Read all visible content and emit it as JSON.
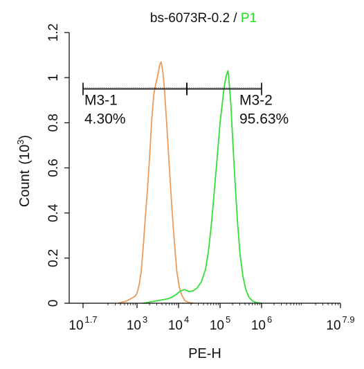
{
  "chart_data": {
    "type": "line",
    "title": {
      "prefix": "bs-6073R-0.2 / ",
      "highlight": "P1",
      "highlight_color": "#22dd22"
    },
    "xlabel": "PE-H",
    "ylabel": "Count",
    "ylabel_unit": "(10",
    "ylabel_unit_exp": "3",
    "ylabel_unit_close": ")",
    "x_scale": "log10",
    "xlim_log10": [
      1.7,
      7.9
    ],
    "ylim": [
      0,
      1.2
    ],
    "y_ticks": [
      {
        "value": 0,
        "label": "0"
      },
      {
        "value": 0.2,
        "label": "0.2"
      },
      {
        "value": 0.4,
        "label": "0.4"
      },
      {
        "value": 0.6,
        "label": "0.6"
      },
      {
        "value": 0.8,
        "label": "0.8"
      },
      {
        "value": 1,
        "label": "1"
      },
      {
        "value": 1.2,
        "label": "1.2"
      }
    ],
    "x_ticks": [
      {
        "value": 1.7,
        "base": "10",
        "exp": "1.7"
      },
      {
        "value": 3,
        "base": "10",
        "exp": "3"
      },
      {
        "value": 4,
        "base": "10",
        "exp": "4"
      },
      {
        "value": 5,
        "base": "10",
        "exp": "5"
      },
      {
        "value": 6,
        "base": "10",
        "exp": "6"
      },
      {
        "value": 7.9,
        "base": "10",
        "exp": "7.9"
      }
    ],
    "series": [
      {
        "color": "#ee9955",
        "points_log10_x": [
          [
            2.55,
            0.0
          ],
          [
            2.65,
            0.005
          ],
          [
            2.75,
            0.01
          ],
          [
            2.85,
            0.02
          ],
          [
            2.95,
            0.03
          ],
          [
            3.0,
            0.045
          ],
          [
            3.05,
            0.08
          ],
          [
            3.1,
            0.14
          ],
          [
            3.15,
            0.25
          ],
          [
            3.2,
            0.38
          ],
          [
            3.25,
            0.5
          ],
          [
            3.3,
            0.64
          ],
          [
            3.35,
            0.8
          ],
          [
            3.4,
            0.92
          ],
          [
            3.45,
            0.97
          ],
          [
            3.5,
            1.01
          ],
          [
            3.55,
            1.06
          ],
          [
            3.58,
            1.07
          ],
          [
            3.62,
            1.03
          ],
          [
            3.66,
            0.95
          ],
          [
            3.72,
            0.78
          ],
          [
            3.78,
            0.6
          ],
          [
            3.84,
            0.42
          ],
          [
            3.9,
            0.27
          ],
          [
            3.96,
            0.14
          ],
          [
            4.02,
            0.07
          ],
          [
            4.08,
            0.035
          ],
          [
            4.15,
            0.012
          ],
          [
            4.25,
            0.003
          ],
          [
            4.35,
            0.0
          ]
        ]
      },
      {
        "color": "#33dd33",
        "points_log10_x": [
          [
            3.15,
            0.0
          ],
          [
            3.3,
            0.005
          ],
          [
            3.45,
            0.01
          ],
          [
            3.6,
            0.015
          ],
          [
            3.75,
            0.02
          ],
          [
            3.85,
            0.028
          ],
          [
            3.95,
            0.04
          ],
          [
            4.05,
            0.055
          ],
          [
            4.15,
            0.06
          ],
          [
            4.25,
            0.052
          ],
          [
            4.35,
            0.055
          ],
          [
            4.45,
            0.068
          ],
          [
            4.55,
            0.095
          ],
          [
            4.65,
            0.15
          ],
          [
            4.72,
            0.23
          ],
          [
            4.78,
            0.33
          ],
          [
            4.84,
            0.45
          ],
          [
            4.9,
            0.58
          ],
          [
            4.96,
            0.71
          ],
          [
            5.0,
            0.8
          ],
          [
            5.05,
            0.88
          ],
          [
            5.1,
            0.96
          ],
          [
            5.15,
            1.01
          ],
          [
            5.19,
            1.03
          ],
          [
            5.22,
            0.98
          ],
          [
            5.26,
            0.88
          ],
          [
            5.3,
            0.74
          ],
          [
            5.36,
            0.54
          ],
          [
            5.42,
            0.36
          ],
          [
            5.48,
            0.22
          ],
          [
            5.55,
            0.12
          ],
          [
            5.62,
            0.06
          ],
          [
            5.7,
            0.025
          ],
          [
            5.8,
            0.008
          ],
          [
            5.9,
            0.002
          ],
          [
            6.0,
            0.0
          ]
        ]
      }
    ],
    "gates": [
      {
        "label": "M3-1",
        "percent": "4.30%",
        "x_log10_range": [
          1.7,
          4.2
        ],
        "y": 0.95
      },
      {
        "label": "M3-2",
        "percent": "95.63%",
        "x_log10_range": [
          4.2,
          6.0
        ],
        "y": 0.95
      }
    ]
  }
}
